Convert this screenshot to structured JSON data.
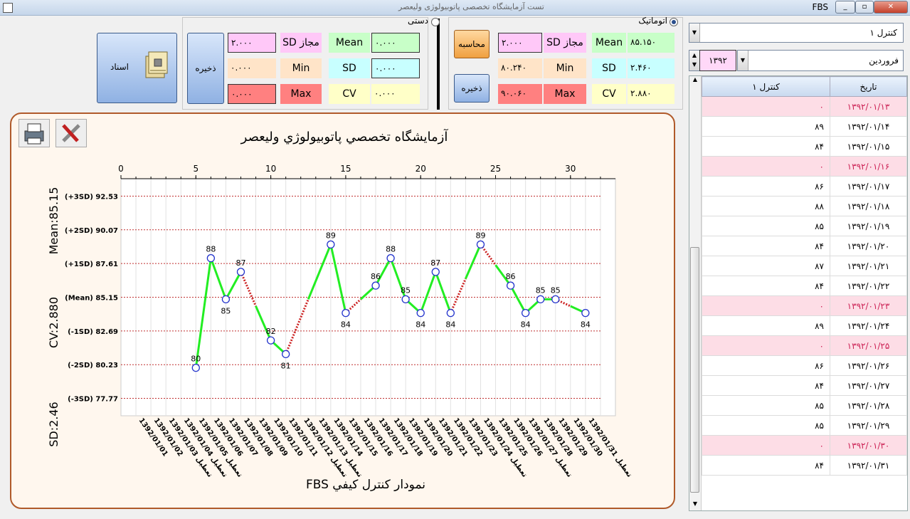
{
  "window": {
    "title": "FBS",
    "caption_faded": "تست آزمایشگاه تخصصی پاتوبیولوژی ولیعصر"
  },
  "auto_panel": {
    "radio_label": "اتوماتیک",
    "mean_label": "Mean",
    "mean_value": "۸۵.۱۵۰",
    "sd_label": "SD",
    "sd_value": "۲.۴۶۰",
    "cv_label": "CV",
    "cv_value": "۲.۸۸۰",
    "sd_allowed_label": "SD مجاز",
    "sd_allowed_value": "۲.۰۰۰",
    "min_label": "Min",
    "min_value": "۸۰.۲۴۰",
    "max_label": "Max",
    "max_value": "۹۰.۰۶۰",
    "calc_button": "محاسبه",
    "save_button": "ذخیره"
  },
  "manual_panel": {
    "radio_label": "دستی",
    "mean_label": "Mean",
    "mean_value": "۰.۰۰۰",
    "sd_label": "SD",
    "sd_value": "۰.۰۰۰",
    "cv_label": "CV",
    "cv_value": "۰.۰۰۰",
    "sd_allowed_label": "SD مجاز",
    "sd_allowed_value": "۲.۰۰۰",
    "min_label": "Min",
    "min_value": "۰.۰۰۰",
    "max_label": "Max",
    "max_value": "۰.۰۰۰",
    "save_button": "ذخیره"
  },
  "documents_button": "اسناد",
  "sidebar": {
    "control_combo": "کنترل ۱",
    "month_combo": "فروردین",
    "year_value": "۱۳۹۲",
    "table_headers": [
      "تاریخ",
      "کنترل ۱"
    ],
    "rows": [
      {
        "date": "۱۳۹۲/۰۱/۱۳",
        "value": "۰",
        "zero": true
      },
      {
        "date": "۱۳۹۲/۰۱/۱۴",
        "value": "۸۹",
        "zero": false
      },
      {
        "date": "۱۳۹۲/۰۱/۱۵",
        "value": "۸۴",
        "zero": false
      },
      {
        "date": "۱۳۹۲/۰۱/۱۶",
        "value": "۰",
        "zero": true
      },
      {
        "date": "۱۳۹۲/۰۱/۱۷",
        "value": "۸۶",
        "zero": false
      },
      {
        "date": "۱۳۹۲/۰۱/۱۸",
        "value": "۸۸",
        "zero": false
      },
      {
        "date": "۱۳۹۲/۰۱/۱۹",
        "value": "۸۵",
        "zero": false
      },
      {
        "date": "۱۳۹۲/۰۱/۲۰",
        "value": "۸۴",
        "zero": false
      },
      {
        "date": "۱۳۹۲/۰۱/۲۱",
        "value": "۸۷",
        "zero": false
      },
      {
        "date": "۱۳۹۲/۰۱/۲۲",
        "value": "۸۴",
        "zero": false
      },
      {
        "date": "۱۳۹۲/۰۱/۲۳",
        "value": "۰",
        "zero": true
      },
      {
        "date": "۱۳۹۲/۰۱/۲۴",
        "value": "۸۹",
        "zero": false
      },
      {
        "date": "۱۳۹۲/۰۱/۲۵",
        "value": "۰",
        "zero": true
      },
      {
        "date": "۱۳۹۲/۰۱/۲۶",
        "value": "۸۶",
        "zero": false
      },
      {
        "date": "۱۳۹۲/۰۱/۲۷",
        "value": "۸۴",
        "zero": false
      },
      {
        "date": "۱۳۹۲/۰۱/۲۸",
        "value": "۸۵",
        "zero": false
      },
      {
        "date": "۱۳۹۲/۰۱/۲۹",
        "value": "۸۵",
        "zero": false
      },
      {
        "date": "۱۳۹۲/۰۱/۳۰",
        "value": "۰",
        "zero": true
      },
      {
        "date": "۱۳۹۲/۰۱/۳۱",
        "value": "۸۴",
        "zero": false
      }
    ]
  },
  "chart_data": {
    "type": "line",
    "title": "آزمایشگاه تخصصي پاتوبيولوژي وليعصر",
    "xlabel": "FBS نمودار كنترل كيفي",
    "left_stats": [
      "Mean:85.15",
      "CV:2.880",
      "SD:2.46"
    ],
    "xlim": [
      0,
      33
    ],
    "ylim": [
      76.5,
      93.8
    ],
    "x_ticks": [
      0,
      5,
      10,
      15,
      20,
      25,
      30
    ],
    "control_lines": [
      {
        "label": "(+3SD) 92.53",
        "value": 92.53
      },
      {
        "label": "(+2SD) 90.07",
        "value": 90.07
      },
      {
        "label": "(+1SD) 87.61",
        "value": 87.61
      },
      {
        "label": "(Mean) 85.15",
        "value": 85.15
      },
      {
        "label": "(-1SD) 82.69",
        "value": 82.69
      },
      {
        "label": "(-2SD) 80.23",
        "value": 80.23
      },
      {
        "label": "(-3SD) 77.77",
        "value": 77.77
      }
    ],
    "points": [
      {
        "x": 5,
        "y": 80
      },
      {
        "x": 6,
        "y": 88
      },
      {
        "x": 7,
        "y": 85
      },
      {
        "x": 8,
        "y": 87
      },
      {
        "x": 10,
        "y": 82
      },
      {
        "x": 11,
        "y": 81
      },
      {
        "x": 14,
        "y": 89
      },
      {
        "x": 15,
        "y": 84
      },
      {
        "x": 17,
        "y": 86
      },
      {
        "x": 18,
        "y": 88
      },
      {
        "x": 19,
        "y": 85
      },
      {
        "x": 20,
        "y": 84
      },
      {
        "x": 21,
        "y": 87
      },
      {
        "x": 22,
        "y": 84
      },
      {
        "x": 24,
        "y": 89
      },
      {
        "x": 26,
        "y": 86
      },
      {
        "x": 27,
        "y": 84
      },
      {
        "x": 28,
        "y": 85
      },
      {
        "x": 29,
        "y": 85
      },
      {
        "x": 31,
        "y": 84
      }
    ],
    "point_labels": [
      "80",
      "88",
      "85",
      "87",
      "82",
      "81",
      "89",
      "84",
      "86",
      "88",
      "85",
      "84",
      "87",
      "84",
      "89",
      "86",
      "84",
      "85",
      "85",
      "84"
    ],
    "series_colors": {
      "line": "#22ee22",
      "gap": "#cc2222",
      "marker": "#2233cc",
      "grid": "#c03030"
    },
    "categories": [
      "1392/01/01",
      "1392/01/02",
      "1392/01/03 تعطیل",
      "1392/01/04 تعطیل",
      "1392/01/05 تعطیل",
      "1392/01/06",
      "1392/01/07",
      "1392/01/08",
      "1392/01/09",
      "1392/01/10",
      "1392/01/11",
      "1392/01/12 تعطیل",
      "1392/01/13 تعطیل",
      "1392/01/14",
      "1392/01/15",
      "1392/01/16",
      "1392/01/17",
      "1392/01/18",
      "1392/01/19",
      "1392/01/20",
      "1392/01/21",
      "1392/01/22",
      "1392/01/23",
      "1392/01/24 تعطیل",
      "1392/01/25",
      "1392/01/26",
      "1392/01/27 تعطیل",
      "1392/01/28",
      "1392/01/29",
      "1392/01/30",
      "1392/01/31 تعطیل"
    ]
  }
}
